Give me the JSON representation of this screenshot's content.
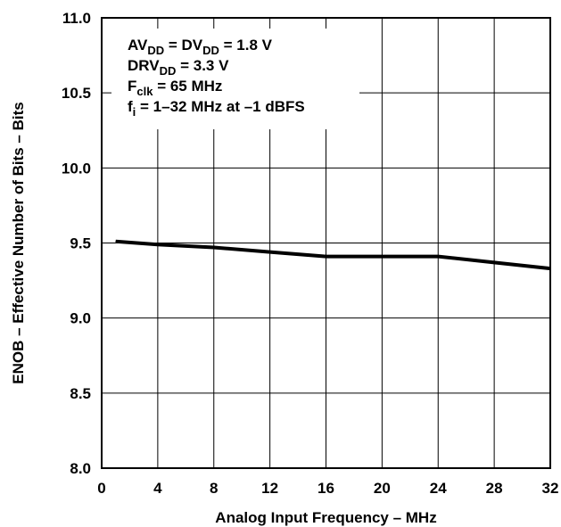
{
  "chart_data": {
    "type": "line",
    "xlabel": "Analog Input Frequency – MHz",
    "ylabel": "ENOB – Effective Number of Bits – Bits",
    "xlim": [
      0,
      32
    ],
    "ylim": [
      8.0,
      11.0
    ],
    "x_ticks": [
      "0",
      "4",
      "8",
      "12",
      "16",
      "20",
      "24",
      "28",
      "32"
    ],
    "y_ticks": [
      "8.0",
      "8.5",
      "9.0",
      "9.5",
      "10.0",
      "10.5",
      "11.0"
    ],
    "grid": true,
    "series": [
      {
        "x": [
          1,
          4,
          8,
          12,
          16,
          20,
          24,
          28,
          32
        ],
        "y": [
          9.51,
          9.49,
          9.47,
          9.44,
          9.41,
          9.41,
          9.41,
          9.37,
          9.33
        ]
      }
    ],
    "annotation_lines": [
      {
        "parts": [
          {
            "text": "AV"
          },
          {
            "text": "DD",
            "sub": true
          },
          {
            "text": " = DV"
          },
          {
            "text": "DD",
            "sub": true
          },
          {
            "text": " = 1.8 V"
          }
        ]
      },
      {
        "parts": [
          {
            "text": "DRV"
          },
          {
            "text": "DD",
            "sub": true
          },
          {
            "text": " = 3.3 V"
          }
        ]
      },
      {
        "parts": [
          {
            "text": "F"
          },
          {
            "text": "clk",
            "sub": true
          },
          {
            "text": " = 65 MHz"
          }
        ]
      },
      {
        "parts": [
          {
            "text": "f"
          },
          {
            "text": "i",
            "sub": true
          },
          {
            "text": " = 1–32 MHz at –1 dBFS"
          }
        ]
      }
    ],
    "line_color": "#000000",
    "grid_color": "#000000"
  }
}
